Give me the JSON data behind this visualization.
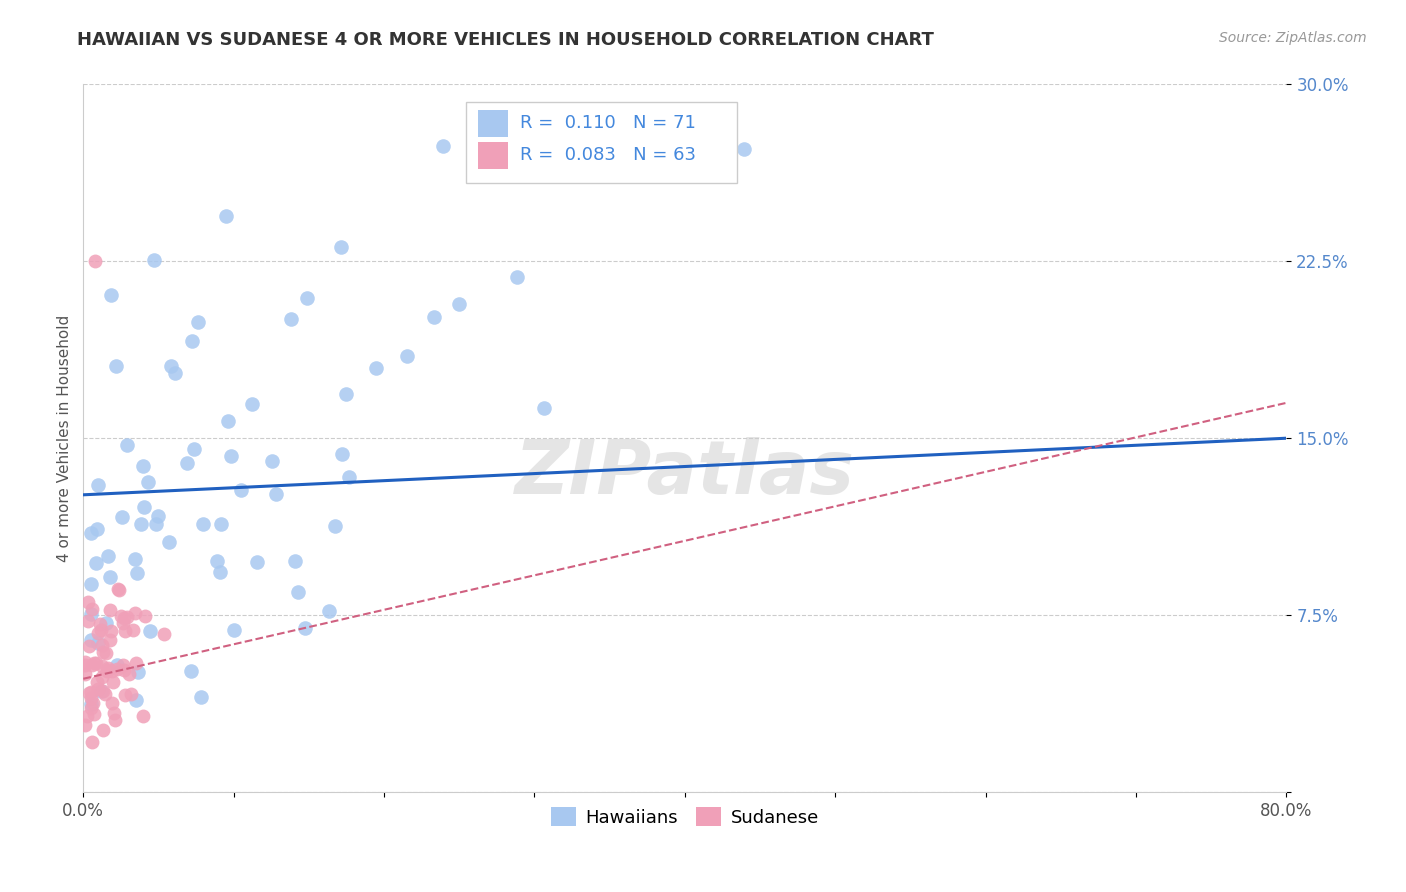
{
  "title": "HAWAIIAN VS SUDANESE 4 OR MORE VEHICLES IN HOUSEHOLD CORRELATION CHART",
  "source": "Source: ZipAtlas.com",
  "ylabel": "4 or more Vehicles in Household",
  "xlim": [
    0.0,
    0.8
  ],
  "ylim": [
    0.0,
    0.3
  ],
  "hawaiian_R": 0.11,
  "hawaiian_N": 71,
  "sudanese_R": 0.083,
  "sudanese_N": 63,
  "hawaiian_color": "#a8c8f0",
  "sudanese_color": "#f0a0b8",
  "trendline_hawaiian_color": "#2060c0",
  "trendline_sudanese_color": "#d06080",
  "background_color": "#ffffff",
  "grid_color": "#cccccc",
  "watermark": "ZIPatlas",
  "legend_hawaiian_label": "Hawaiians",
  "legend_sudanese_label": "Sudanese",
  "tick_color_y": "#5588cc",
  "tick_color_x": "#555555",
  "ylabel_color": "#555555"
}
